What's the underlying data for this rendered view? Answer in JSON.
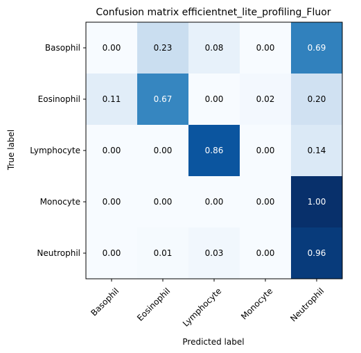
{
  "chart_data": {
    "type": "heatmap",
    "title": "Confusion matrix efficientnet_lite_profiling_Fluor",
    "xlabel": "Predicted label",
    "ylabel": "True label",
    "x_categories": [
      "Basophil",
      "Eosinophil",
      "Lymphocyte",
      "Monocyte",
      "Neutrophil"
    ],
    "y_categories": [
      "Basophil",
      "Eosinophil",
      "Lymphocyte",
      "Monocyte",
      "Neutrophil"
    ],
    "values": [
      [
        0.0,
        0.23,
        0.08,
        0.0,
        0.69
      ],
      [
        0.11,
        0.67,
        0.0,
        0.02,
        0.2
      ],
      [
        0.0,
        0.0,
        0.86,
        0.0,
        0.14
      ],
      [
        0.0,
        0.0,
        0.0,
        0.0,
        1.0
      ],
      [
        0.0,
        0.01,
        0.03,
        0.0,
        0.96
      ]
    ],
    "value_range": [
      0,
      1
    ],
    "colormap": "Blues",
    "x_tick_rotation": 45,
    "grid": false
  }
}
